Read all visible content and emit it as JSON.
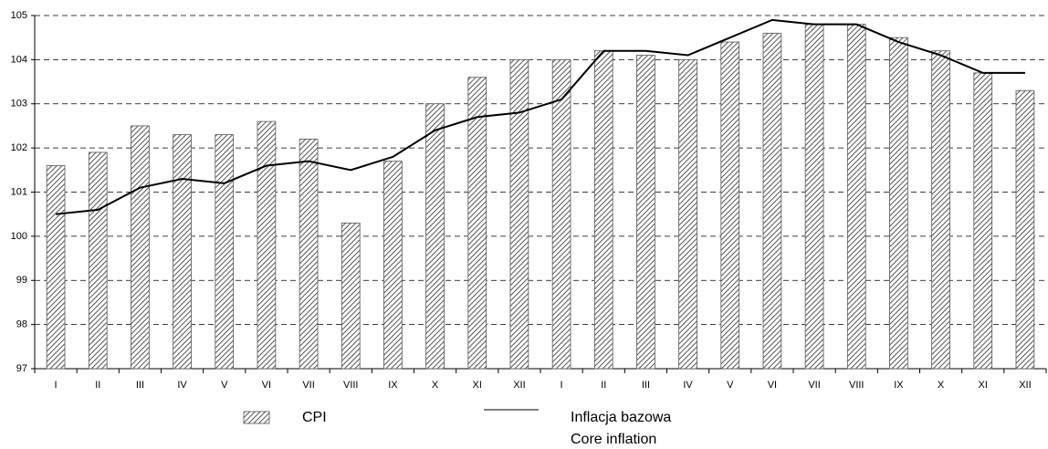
{
  "chart_data": {
    "type": "bar_line",
    "categories": [
      "I",
      "II",
      "III",
      "IV",
      "V",
      "VI",
      "VII",
      "VIII",
      "IX",
      "X",
      "XI",
      "XII",
      "I",
      "II",
      "III",
      "IV",
      "V",
      "VI",
      "VII",
      "VIII",
      "IX",
      "X",
      "XI",
      "XII"
    ],
    "series": [
      {
        "name": "CPI",
        "type": "bar",
        "color": "#555555",
        "values": [
          101.6,
          101.9,
          102.5,
          102.3,
          102.3,
          102.6,
          102.2,
          100.3,
          101.7,
          103.0,
          103.6,
          104.0,
          104.0,
          104.2,
          104.1,
          104.0,
          104.4,
          104.6,
          104.8,
          104.8,
          104.5,
          104.2,
          103.7,
          103.3
        ]
      },
      {
        "name": "Inflacja bazowa\nCore inflation",
        "type": "line",
        "color": "#000000",
        "values": [
          100.5,
          100.6,
          101.1,
          101.3,
          101.2,
          101.6,
          101.7,
          101.5,
          101.8,
          102.4,
          102.7,
          102.8,
          103.1,
          104.2,
          104.2,
          104.1,
          104.5,
          104.9,
          104.8,
          104.8,
          104.4,
          104.1,
          103.7,
          103.7
        ]
      }
    ],
    "ylim": [
      97,
      105
    ],
    "yticks": [
      97,
      98,
      99,
      100,
      101,
      102,
      103,
      104,
      105
    ],
    "grid": true
  }
}
